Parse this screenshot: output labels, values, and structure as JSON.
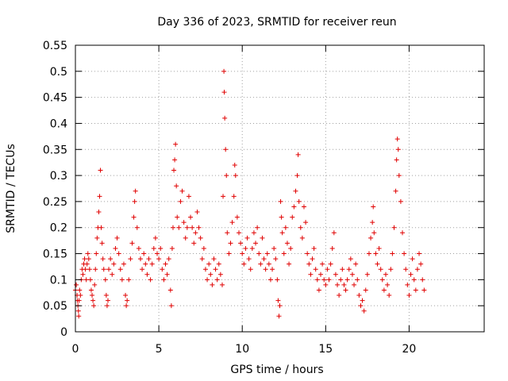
{
  "chart_data": {
    "type": "scatter",
    "title": "Day 336 of 2023, SRMTID for receiver reun",
    "xlabel": "GPS time / hours",
    "ylabel": "SRMTID / TECUs",
    "xlim": [
      0,
      24.5
    ],
    "ylim": [
      0,
      0.55
    ],
    "x_ticks": [
      0,
      5,
      10,
      15,
      20
    ],
    "x_tick_labels": [
      "0",
      "5",
      "10",
      "15",
      "20"
    ],
    "y_ticks": [
      0,
      0.05,
      0.1,
      0.15,
      0.2,
      0.25,
      0.3,
      0.35,
      0.4,
      0.45,
      0.5,
      0.55
    ],
    "y_tick_labels": [
      "0",
      "0.05",
      "0.1",
      "0.15",
      "0.2",
      "0.25",
      "0.3",
      "0.35",
      "0.4",
      "0.45",
      "0.5",
      "0.55"
    ],
    "grid": true,
    "marker": "+",
    "color": "#e00000",
    "series": [
      {
        "name": "SRMTID",
        "points": [
          [
            0.0,
            0.08
          ],
          [
            0.05,
            0.09
          ],
          [
            0.1,
            0.07
          ],
          [
            0.12,
            0.06
          ],
          [
            0.15,
            0.05
          ],
          [
            0.18,
            0.04
          ],
          [
            0.2,
            0.03
          ],
          [
            0.22,
            0.06
          ],
          [
            0.25,
            0.08
          ],
          [
            0.3,
            0.07
          ],
          [
            0.35,
            0.1
          ],
          [
            0.4,
            0.12
          ],
          [
            0.45,
            0.11
          ],
          [
            0.5,
            0.13
          ],
          [
            0.55,
            0.14
          ],
          [
            0.6,
            0.12
          ],
          [
            0.65,
            0.1
          ],
          [
            0.7,
            0.13
          ],
          [
            0.75,
            0.15
          ],
          [
            0.8,
            0.14
          ],
          [
            0.85,
            0.12
          ],
          [
            0.9,
            0.1
          ],
          [
            0.95,
            0.08
          ],
          [
            1.0,
            0.07
          ],
          [
            1.05,
            0.06
          ],
          [
            1.1,
            0.05
          ],
          [
            1.15,
            0.09
          ],
          [
            1.2,
            0.12
          ],
          [
            1.25,
            0.15
          ],
          [
            1.3,
            0.18
          ],
          [
            1.35,
            0.2
          ],
          [
            1.4,
            0.23
          ],
          [
            1.45,
            0.26
          ],
          [
            1.5,
            0.31
          ],
          [
            1.55,
            0.2
          ],
          [
            1.6,
            0.17
          ],
          [
            1.65,
            0.14
          ],
          [
            1.7,
            0.12
          ],
          [
            1.8,
            0.1
          ],
          [
            1.85,
            0.07
          ],
          [
            1.9,
            0.05
          ],
          [
            1.95,
            0.06
          ],
          [
            2.0,
            0.12
          ],
          [
            2.1,
            0.14
          ],
          [
            2.2,
            0.11
          ],
          [
            2.3,
            0.13
          ],
          [
            2.4,
            0.16
          ],
          [
            2.5,
            0.18
          ],
          [
            2.6,
            0.15
          ],
          [
            2.7,
            0.12
          ],
          [
            2.8,
            0.1
          ],
          [
            2.9,
            0.13
          ],
          [
            3.0,
            0.07
          ],
          [
            3.05,
            0.05
          ],
          [
            3.1,
            0.06
          ],
          [
            3.2,
            0.1
          ],
          [
            3.3,
            0.14
          ],
          [
            3.4,
            0.17
          ],
          [
            3.5,
            0.22
          ],
          [
            3.55,
            0.25
          ],
          [
            3.6,
            0.27
          ],
          [
            3.7,
            0.2
          ],
          [
            3.8,
            0.16
          ],
          [
            3.9,
            0.14
          ],
          [
            4.0,
            0.12
          ],
          [
            4.1,
            0.15
          ],
          [
            4.2,
            0.13
          ],
          [
            4.3,
            0.11
          ],
          [
            4.4,
            0.14
          ],
          [
            4.5,
            0.1
          ],
          [
            4.6,
            0.13
          ],
          [
            4.7,
            0.16
          ],
          [
            4.8,
            0.18
          ],
          [
            4.9,
            0.15
          ],
          [
            5.0,
            0.14
          ],
          [
            5.1,
            0.16
          ],
          [
            5.2,
            0.12
          ],
          [
            5.3,
            0.1
          ],
          [
            5.4,
            0.13
          ],
          [
            5.5,
            0.11
          ],
          [
            5.6,
            0.14
          ],
          [
            5.7,
            0.08
          ],
          [
            5.75,
            0.05
          ],
          [
            5.8,
            0.16
          ],
          [
            5.85,
            0.2
          ],
          [
            5.9,
            0.31
          ],
          [
            5.95,
            0.33
          ],
          [
            6.0,
            0.36
          ],
          [
            6.05,
            0.28
          ],
          [
            6.1,
            0.22
          ],
          [
            6.2,
            0.2
          ],
          [
            6.3,
            0.25
          ],
          [
            6.4,
            0.27
          ],
          [
            6.5,
            0.21
          ],
          [
            6.6,
            0.18
          ],
          [
            6.7,
            0.2
          ],
          [
            6.8,
            0.26
          ],
          [
            6.9,
            0.22
          ],
          [
            7.0,
            0.2
          ],
          [
            7.1,
            0.17
          ],
          [
            7.2,
            0.19
          ],
          [
            7.3,
            0.23
          ],
          [
            7.4,
            0.2
          ],
          [
            7.5,
            0.18
          ],
          [
            7.6,
            0.14
          ],
          [
            7.7,
            0.16
          ],
          [
            7.8,
            0.12
          ],
          [
            7.9,
            0.1
          ],
          [
            8.0,
            0.13
          ],
          [
            8.1,
            0.11
          ],
          [
            8.2,
            0.09
          ],
          [
            8.3,
            0.14
          ],
          [
            8.4,
            0.12
          ],
          [
            8.5,
            0.1
          ],
          [
            8.6,
            0.13
          ],
          [
            8.7,
            0.11
          ],
          [
            8.8,
            0.09
          ],
          [
            8.85,
            0.26
          ],
          [
            8.9,
            0.5
          ],
          [
            8.92,
            0.46
          ],
          [
            8.95,
            0.41
          ],
          [
            9.0,
            0.35
          ],
          [
            9.05,
            0.3
          ],
          [
            9.1,
            0.19
          ],
          [
            9.2,
            0.15
          ],
          [
            9.3,
            0.17
          ],
          [
            9.4,
            0.21
          ],
          [
            9.5,
            0.26
          ],
          [
            9.55,
            0.32
          ],
          [
            9.6,
            0.3
          ],
          [
            9.7,
            0.22
          ],
          [
            9.8,
            0.19
          ],
          [
            9.9,
            0.17
          ],
          [
            10.0,
            0.15
          ],
          [
            10.1,
            0.13
          ],
          [
            10.2,
            0.16
          ],
          [
            10.3,
            0.18
          ],
          [
            10.4,
            0.14
          ],
          [
            10.5,
            0.12
          ],
          [
            10.6,
            0.16
          ],
          [
            10.7,
            0.19
          ],
          [
            10.8,
            0.17
          ],
          [
            10.9,
            0.2
          ],
          [
            11.0,
            0.15
          ],
          [
            11.1,
            0.13
          ],
          [
            11.2,
            0.18
          ],
          [
            11.3,
            0.14
          ],
          [
            11.4,
            0.12
          ],
          [
            11.5,
            0.15
          ],
          [
            11.6,
            0.13
          ],
          [
            11.7,
            0.1
          ],
          [
            11.8,
            0.12
          ],
          [
            11.9,
            0.16
          ],
          [
            12.0,
            0.14
          ],
          [
            12.1,
            0.1
          ],
          [
            12.15,
            0.06
          ],
          [
            12.2,
            0.03
          ],
          [
            12.25,
            0.05
          ],
          [
            12.3,
            0.25
          ],
          [
            12.35,
            0.22
          ],
          [
            12.4,
            0.19
          ],
          [
            12.5,
            0.15
          ],
          [
            12.6,
            0.2
          ],
          [
            12.7,
            0.17
          ],
          [
            12.8,
            0.13
          ],
          [
            12.9,
            0.16
          ],
          [
            13.0,
            0.22
          ],
          [
            13.1,
            0.24
          ],
          [
            13.2,
            0.27
          ],
          [
            13.3,
            0.3
          ],
          [
            13.35,
            0.34
          ],
          [
            13.4,
            0.25
          ],
          [
            13.5,
            0.2
          ],
          [
            13.6,
            0.18
          ],
          [
            13.7,
            0.24
          ],
          [
            13.8,
            0.21
          ],
          [
            13.9,
            0.15
          ],
          [
            14.0,
            0.13
          ],
          [
            14.1,
            0.11
          ],
          [
            14.2,
            0.14
          ],
          [
            14.3,
            0.16
          ],
          [
            14.4,
            0.12
          ],
          [
            14.5,
            0.1
          ],
          [
            14.6,
            0.08
          ],
          [
            14.7,
            0.11
          ],
          [
            14.8,
            0.13
          ],
          [
            14.9,
            0.1
          ],
          [
            15.0,
            0.09
          ],
          [
            15.1,
            0.12
          ],
          [
            15.2,
            0.1
          ],
          [
            15.3,
            0.13
          ],
          [
            15.4,
            0.16
          ],
          [
            15.5,
            0.19
          ],
          [
            15.6,
            0.11
          ],
          [
            15.7,
            0.09
          ],
          [
            15.8,
            0.07
          ],
          [
            15.9,
            0.1
          ],
          [
            16.0,
            0.12
          ],
          [
            16.1,
            0.09
          ],
          [
            16.2,
            0.08
          ],
          [
            16.3,
            0.1
          ],
          [
            16.4,
            0.12
          ],
          [
            16.5,
            0.14
          ],
          [
            16.6,
            0.11
          ],
          [
            16.7,
            0.09
          ],
          [
            16.8,
            0.13
          ],
          [
            16.9,
            0.1
          ],
          [
            17.0,
            0.07
          ],
          [
            17.1,
            0.05
          ],
          [
            17.2,
            0.06
          ],
          [
            17.3,
            0.04
          ],
          [
            17.4,
            0.08
          ],
          [
            17.5,
            0.11
          ],
          [
            17.6,
            0.15
          ],
          [
            17.7,
            0.18
          ],
          [
            17.8,
            0.21
          ],
          [
            17.85,
            0.24
          ],
          [
            17.9,
            0.19
          ],
          [
            18.0,
            0.15
          ],
          [
            18.1,
            0.13
          ],
          [
            18.2,
            0.16
          ],
          [
            18.3,
            0.12
          ],
          [
            18.4,
            0.1
          ],
          [
            18.5,
            0.08
          ],
          [
            18.6,
            0.11
          ],
          [
            18.7,
            0.09
          ],
          [
            18.8,
            0.07
          ],
          [
            18.9,
            0.12
          ],
          [
            19.0,
            0.15
          ],
          [
            19.1,
            0.2
          ],
          [
            19.2,
            0.27
          ],
          [
            19.25,
            0.33
          ],
          [
            19.3,
            0.37
          ],
          [
            19.35,
            0.35
          ],
          [
            19.4,
            0.3
          ],
          [
            19.5,
            0.25
          ],
          [
            19.6,
            0.19
          ],
          [
            19.7,
            0.15
          ],
          [
            19.8,
            0.12
          ],
          [
            19.9,
            0.09
          ],
          [
            20.0,
            0.07
          ],
          [
            20.1,
            0.11
          ],
          [
            20.2,
            0.14
          ],
          [
            20.3,
            0.1
          ],
          [
            20.4,
            0.08
          ],
          [
            20.5,
            0.12
          ],
          [
            20.6,
            0.15
          ],
          [
            20.7,
            0.13
          ],
          [
            20.8,
            0.1
          ],
          [
            20.9,
            0.08
          ]
        ]
      }
    ]
  }
}
